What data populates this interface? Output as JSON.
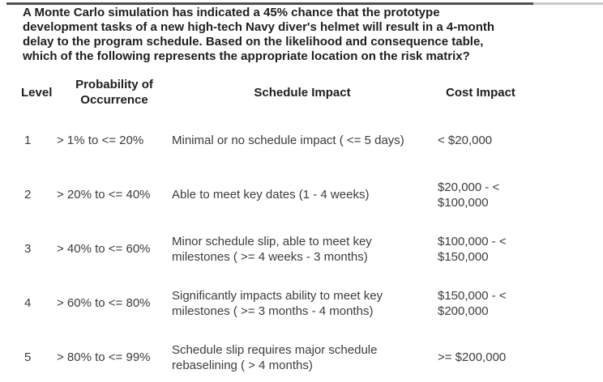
{
  "colors": {
    "background": "#ffffff",
    "question_text": "#1e1e1e",
    "header_text": "#1e1e1e",
    "body_text": "#3c3c3c",
    "topline_dark": "#4f4f4f",
    "topline_light": "#c9c9c9"
  },
  "question": {
    "lines": [
      "A Monte Carlo simulation has indicated a 45% chance that the prototype",
      "development tasks of a new high-tech Navy diver's helmet will result in a 4-month",
      "delay to the program schedule. Based on the likelihood and consequence table,",
      "which of the following represents the appropriate location on the risk matrix?"
    ]
  },
  "table": {
    "headers": {
      "level": "Level",
      "probability": {
        "lines": [
          "Probability of",
          "Occurrence"
        ]
      },
      "schedule": "Schedule Impact",
      "cost": "Cost Impact"
    },
    "rows": [
      {
        "level": "1",
        "probability": "> 1% to <= 20%",
        "schedule": {
          "lines": [
            "Minimal or no schedule impact ( <= 5 days)"
          ]
        },
        "cost": {
          "lines": [
            "< $20,000"
          ]
        }
      },
      {
        "level": "2",
        "probability": "> 20% to <= 40%",
        "schedule": {
          "lines": [
            "Able to meet key dates (1 - 4 weeks)"
          ]
        },
        "cost": {
          "lines": [
            "$20,000 - <",
            "$100,000"
          ]
        }
      },
      {
        "level": "3",
        "probability": "> 40% to <= 60%",
        "schedule": {
          "lines": [
            "Minor schedule slip, able to meet key",
            "milestones ( >= 4 weeks - 3 months)"
          ]
        },
        "cost": {
          "lines": [
            "$100,000 - <",
            "$150,000"
          ]
        }
      },
      {
        "level": "4",
        "probability": "> 60% to <= 80%",
        "schedule": {
          "lines": [
            "Significantly impacts ability to meet key",
            "milestones ( >= 3 months - 4 months)"
          ]
        },
        "cost": {
          "lines": [
            "$150,000 - <",
            "$200,000"
          ]
        }
      },
      {
        "level": "5",
        "probability": "> 80% to <= 99%",
        "schedule": {
          "lines": [
            "Schedule slip requires major schedule",
            "rebaselining ( > 4 months)"
          ]
        },
        "cost": {
          "lines": [
            ">= $200,000"
          ]
        }
      }
    ]
  }
}
